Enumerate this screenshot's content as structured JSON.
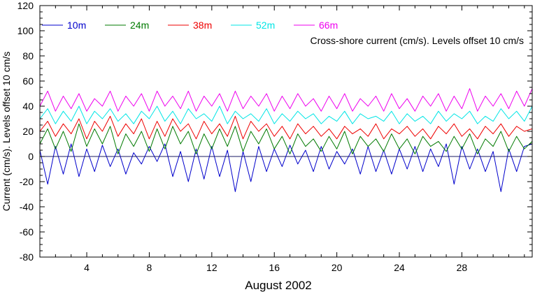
{
  "chart_data": {
    "type": "line",
    "title": "",
    "annotation": "Cross-shore current (cm/s). Levels offset 10 cm/s",
    "xlabel": "August 2002",
    "ylabel": "Current (cm/s). Levels offset 10 cm/s",
    "x_unit": "day of August 2002",
    "xlim": [
      1.0,
      32.5
    ],
    "ylim": [
      -80,
      120
    ],
    "xticks": [
      4,
      8,
      12,
      16,
      20,
      24,
      28
    ],
    "yticks": [
      -80,
      -60,
      -40,
      -20,
      0,
      20,
      40,
      60,
      80,
      100,
      120
    ],
    "zero_line": 0,
    "grid": false,
    "legend_placement": "top-left, horizontal",
    "series": [
      {
        "name": "10m",
        "color": "#0000cc",
        "offset": 0,
        "x": [
          1.0,
          1.5,
          2.0,
          2.5,
          3.0,
          3.5,
          4.0,
          4.5,
          5.0,
          5.5,
          6.0,
          6.5,
          7.0,
          7.5,
          8.0,
          8.5,
          9.0,
          9.5,
          10.0,
          10.5,
          11.0,
          11.5,
          12.0,
          12.5,
          13.0,
          13.5,
          14.0,
          14.5,
          15.0,
          15.5,
          16.0,
          16.5,
          17.0,
          17.5,
          18.0,
          18.5,
          19.0,
          19.5,
          20.0,
          20.5,
          21.0,
          21.5,
          22.0,
          22.5,
          23.0,
          23.5,
          24.0,
          24.5,
          25.0,
          25.5,
          26.0,
          26.5,
          27.0,
          27.5,
          28.0,
          28.5,
          29.0,
          29.5,
          30.0,
          30.5,
          31.0,
          31.5,
          32.0,
          32.5
        ],
        "y": [
          5,
          -22,
          8,
          -14,
          10,
          -16,
          6,
          -12,
          9,
          -8,
          6,
          -14,
          3,
          -6,
          8,
          -4,
          10,
          -16,
          4,
          -20,
          6,
          -18,
          8,
          -16,
          5,
          -28,
          4,
          -20,
          8,
          -12,
          6,
          -8,
          9,
          -6,
          5,
          -12,
          8,
          -10,
          4,
          -6,
          6,
          -14,
          8,
          -12,
          5,
          -14,
          6,
          -10,
          8,
          -12,
          6,
          -8,
          10,
          -22,
          8,
          -10,
          6,
          -12,
          4,
          -28,
          6,
          -12,
          8,
          10
        ]
      },
      {
        "name": "24m",
        "color": "#007a00",
        "offset": 10,
        "x": [
          1.0,
          1.5,
          2.0,
          2.5,
          3.0,
          3.5,
          4.0,
          4.5,
          5.0,
          5.5,
          6.0,
          6.5,
          7.0,
          7.5,
          8.0,
          8.5,
          9.0,
          9.5,
          10.0,
          10.5,
          11.0,
          11.5,
          12.0,
          12.5,
          13.0,
          13.5,
          14.0,
          14.5,
          15.0,
          15.5,
          16.0,
          16.5,
          17.0,
          17.5,
          18.0,
          18.5,
          19.0,
          19.5,
          20.0,
          20.5,
          21.0,
          21.5,
          22.0,
          22.5,
          23.0,
          23.5,
          24.0,
          24.5,
          25.0,
          25.5,
          26.0,
          26.5,
          27.0,
          27.5,
          28.0,
          28.5,
          29.0,
          29.5,
          30.0,
          30.5,
          31.0,
          31.5,
          32.0,
          32.5
        ],
        "y": [
          10,
          22,
          6,
          20,
          4,
          26,
          8,
          22,
          10,
          24,
          2,
          18,
          8,
          20,
          4,
          22,
          6,
          24,
          10,
          20,
          2,
          18,
          6,
          22,
          8,
          24,
          4,
          20,
          10,
          22,
          6,
          16,
          2,
          18,
          8,
          14,
          4,
          16,
          6,
          20,
          2,
          16,
          8,
          14,
          4,
          18,
          6,
          14,
          2,
          16,
          8,
          12,
          4,
          16,
          6,
          18,
          2,
          14,
          8,
          20,
          4,
          16,
          6,
          12
        ]
      },
      {
        "name": "38m",
        "color": "#ee0000",
        "offset": 20,
        "x": [
          1.0,
          1.5,
          2.0,
          2.5,
          3.0,
          3.5,
          4.0,
          4.5,
          5.0,
          5.5,
          6.0,
          6.5,
          7.0,
          7.5,
          8.0,
          8.5,
          9.0,
          9.5,
          10.0,
          10.5,
          11.0,
          11.5,
          12.0,
          12.5,
          13.0,
          13.5,
          14.0,
          14.5,
          15.0,
          15.5,
          16.0,
          16.5,
          17.0,
          17.5,
          18.0,
          18.5,
          19.0,
          19.5,
          20.0,
          20.5,
          21.0,
          21.5,
          22.0,
          22.5,
          23.0,
          23.5,
          24.0,
          24.5,
          25.0,
          25.5,
          26.0,
          26.5,
          27.0,
          27.5,
          28.0,
          28.5,
          29.0,
          29.5,
          30.0,
          30.5,
          31.0,
          31.5,
          32.0,
          32.5
        ],
        "y": [
          20,
          28,
          16,
          26,
          18,
          30,
          14,
          28,
          20,
          32,
          16,
          26,
          18,
          30,
          14,
          28,
          16,
          30,
          20,
          26,
          14,
          28,
          18,
          26,
          16,
          32,
          14,
          28,
          20,
          26,
          16,
          24,
          14,
          26,
          18,
          24,
          16,
          22,
          14,
          24,
          18,
          22,
          16,
          26,
          14,
          22,
          18,
          24,
          16,
          22,
          14,
          24,
          18,
          26,
          16,
          22,
          14,
          24,
          18,
          26,
          16,
          24,
          20,
          22
        ]
      },
      {
        "name": "52m",
        "color": "#00e5e5",
        "offset": 30,
        "x": [
          1.0,
          1.5,
          2.0,
          2.5,
          3.0,
          3.5,
          4.0,
          4.5,
          5.0,
          5.5,
          6.0,
          6.5,
          7.0,
          7.5,
          8.0,
          8.5,
          9.0,
          9.5,
          10.0,
          10.5,
          11.0,
          11.5,
          12.0,
          12.5,
          13.0,
          13.5,
          14.0,
          14.5,
          15.0,
          15.5,
          16.0,
          16.5,
          17.0,
          17.5,
          18.0,
          18.5,
          19.0,
          19.5,
          20.0,
          20.5,
          21.0,
          21.5,
          22.0,
          22.5,
          23.0,
          23.5,
          24.0,
          24.5,
          25.0,
          25.5,
          26.0,
          26.5,
          27.0,
          27.5,
          28.0,
          28.5,
          29.0,
          29.5,
          30.0,
          30.5,
          31.0,
          31.5,
          32.0,
          32.5
        ],
        "y": [
          30,
          38,
          26,
          36,
          28,
          40,
          26,
          36,
          30,
          38,
          28,
          34,
          26,
          36,
          30,
          40,
          28,
          36,
          26,
          38,
          30,
          34,
          28,
          40,
          26,
          36,
          30,
          34,
          28,
          38,
          26,
          34,
          28,
          36,
          30,
          34,
          26,
          32,
          28,
          36,
          26,
          34,
          30,
          32,
          28,
          36,
          26,
          34,
          28,
          32,
          26,
          36,
          28,
          34,
          30,
          36,
          26,
          32,
          28,
          38,
          30,
          36,
          28,
          40
        ]
      },
      {
        "name": "66m",
        "color": "#ee00ee",
        "offset": 40,
        "x": [
          1.0,
          1.5,
          2.0,
          2.5,
          3.0,
          3.5,
          4.0,
          4.5,
          5.0,
          5.5,
          6.0,
          6.5,
          7.0,
          7.5,
          8.0,
          8.5,
          9.0,
          9.5,
          10.0,
          10.5,
          11.0,
          11.5,
          12.0,
          12.5,
          13.0,
          13.5,
          14.0,
          14.5,
          15.0,
          15.5,
          16.0,
          16.5,
          17.0,
          17.5,
          18.0,
          18.5,
          19.0,
          19.5,
          20.0,
          20.5,
          21.0,
          21.5,
          22.0,
          22.5,
          23.0,
          23.5,
          24.0,
          24.5,
          25.0,
          25.5,
          26.0,
          26.5,
          27.0,
          27.5,
          28.0,
          28.5,
          29.0,
          29.5,
          30.0,
          30.5,
          31.0,
          31.5,
          32.0,
          32.5
        ],
        "y": [
          40,
          52,
          36,
          48,
          38,
          50,
          36,
          46,
          40,
          52,
          36,
          48,
          40,
          50,
          36,
          52,
          40,
          48,
          38,
          52,
          36,
          48,
          40,
          50,
          36,
          52,
          38,
          48,
          40,
          50,
          36,
          48,
          38,
          50,
          40,
          46,
          36,
          48,
          38,
          50,
          36,
          46,
          40,
          48,
          36,
          50,
          38,
          46,
          36,
          48,
          40,
          50,
          36,
          48,
          38,
          54,
          36,
          48,
          40,
          50,
          38,
          52,
          40,
          54
        ]
      }
    ]
  }
}
